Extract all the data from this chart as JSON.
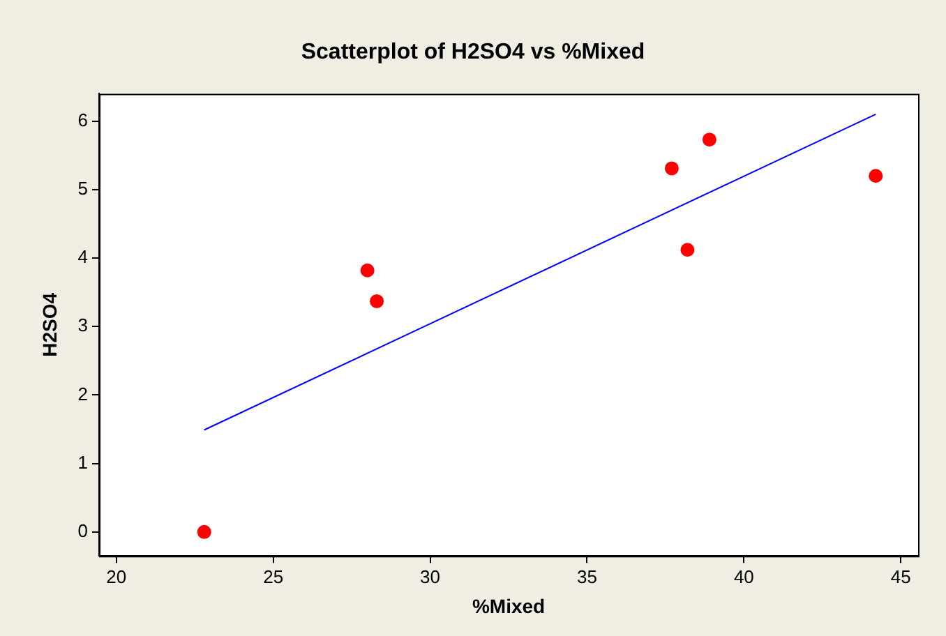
{
  "chart_data": {
    "type": "scatter",
    "title": "Scatterplot of H2SO4 vs %Mixed",
    "xlabel": "%Mixed",
    "ylabel": "H2SO4",
    "x": [
      22.8,
      28.0,
      28.3,
      37.7,
      38.9,
      38.2,
      44.2
    ],
    "series": [
      {
        "color": "#ff0000",
        "values": [
          0,
          3.82,
          3.37,
          5.31,
          5.73,
          4.12,
          5.2
        ]
      },
      {
        "type": "line",
        "color": "#0000ff",
        "x": [
          22.8,
          44.2
        ],
        "values": [
          1.49,
          6.1
        ],
        "marker": "none"
      }
    ],
    "xlim": [
      19.45,
      45.55
    ],
    "xticks": [
      20,
      25,
      30,
      35,
      40,
      45
    ],
    "ylim": [
      -0.35,
      6.4
    ],
    "yticks": [
      0,
      1,
      2,
      3,
      4,
      5,
      6
    ],
    "marker": "circle",
    "grid": false,
    "legend": false
  }
}
